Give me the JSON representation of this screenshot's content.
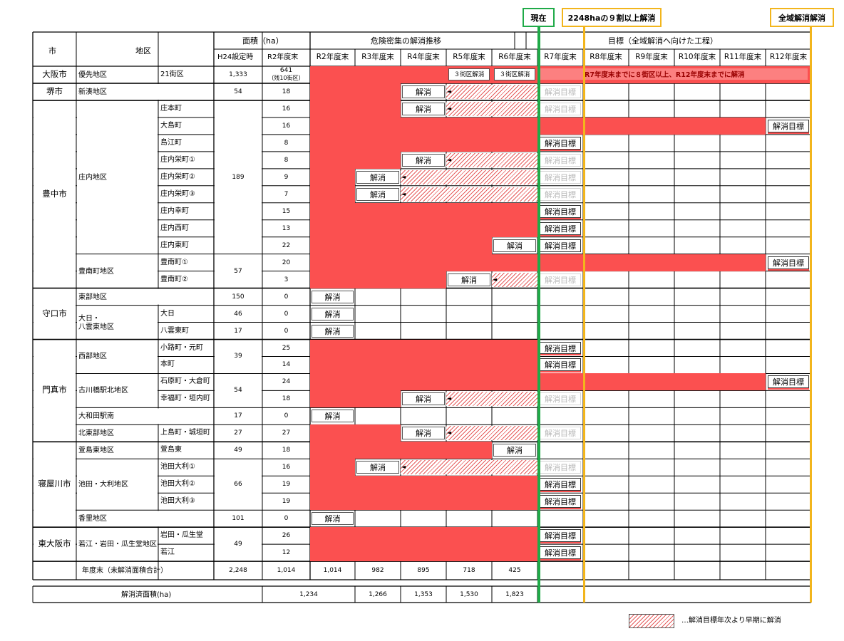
{
  "markers": {
    "current": "現在",
    "ninety": "2248haの９割以上解消",
    "full": "全域解消解消"
  },
  "headers": {
    "city": "市",
    "district": "地区",
    "area": "面積（ha）",
    "h24": "H24設定時",
    "r2": "R2年度末",
    "progress": "危険密集の解消推移",
    "target": "目標（全域解消へ向けた工程）",
    "years": [
      "R2年度末",
      "R3年度末",
      "R4年度末",
      "R5年度末",
      "R6年度末",
      "R7年度末",
      "R8年度末",
      "R9年度末",
      "R10年度末",
      "R11年度末",
      "R12年度末"
    ]
  },
  "labels": {
    "resolved": "解消",
    "target": "解消目標",
    "total_label": "年度末（未解消面積合計）",
    "resolved_area_label": "解消済面積(ha)",
    "legend": "…解消目標年次より早期に解消"
  },
  "cities": [
    {
      "name": "大阪市",
      "rows": [
        0,
        0
      ]
    },
    {
      "name": "堺市",
      "rows": [
        1,
        1
      ]
    },
    {
      "name": "豊中市",
      "rows": [
        2,
        12
      ]
    },
    {
      "name": "守口市",
      "rows": [
        13,
        15
      ]
    },
    {
      "name": "門真市",
      "rows": [
        16,
        21
      ]
    },
    {
      "name": "寝屋川市",
      "rows": [
        22,
        26
      ]
    },
    {
      "name": "東大阪市",
      "rows": [
        27,
        28
      ]
    }
  ],
  "districts": [
    {
      "name": "優先地区",
      "rows": [
        0,
        0
      ]
    },
    {
      "name": "新湊地区",
      "rows": [
        1,
        1
      ],
      "wide": true
    },
    {
      "name": "庄内地区",
      "rows": [
        2,
        10
      ]
    },
    {
      "name": "豊南町地区",
      "rows": [
        11,
        12
      ]
    },
    {
      "name": "東部地区",
      "rows": [
        13,
        13
      ],
      "wide": true
    },
    {
      "name": "大日・\n八雲東地区",
      "rows": [
        14,
        15
      ]
    },
    {
      "name": "西部地区",
      "rows": [
        16,
        17
      ]
    },
    {
      "name": "古川橋駅北地区",
      "rows": [
        18,
        19
      ]
    },
    {
      "name": "大和田駅南",
      "rows": [
        20,
        20
      ],
      "wide": true
    },
    {
      "name": "北東部地区",
      "rows": [
        21,
        21
      ]
    },
    {
      "name": "萱島東地区",
      "rows": [
        22,
        22
      ]
    },
    {
      "name": "池田・大利地区",
      "rows": [
        23,
        25
      ]
    },
    {
      "name": "香里地区",
      "rows": [
        26,
        26
      ],
      "wide": true
    },
    {
      "name": "若江・岩田・瓜生堂地区",
      "rows": [
        27,
        28
      ]
    }
  ],
  "h24": [
    {
      "v": "1,333",
      "rows": [
        0,
        0
      ]
    },
    {
      "v": "54",
      "rows": [
        1,
        1
      ]
    },
    {
      "v": "189",
      "rows": [
        2,
        10
      ]
    },
    {
      "v": "57",
      "rows": [
        11,
        12
      ]
    },
    {
      "v": "150",
      "rows": [
        13,
        13
      ]
    },
    {
      "v": "46",
      "rows": [
        14,
        14
      ]
    },
    {
      "v": "17",
      "rows": [
        15,
        15
      ]
    },
    {
      "v": "39",
      "rows": [
        16,
        17
      ]
    },
    {
      "v": "54",
      "rows": [
        18,
        19
      ]
    },
    {
      "v": "17",
      "rows": [
        20,
        20
      ]
    },
    {
      "v": "27",
      "rows": [
        21,
        21
      ]
    },
    {
      "v": "49",
      "rows": [
        22,
        22
      ]
    },
    {
      "v": "66",
      "rows": [
        23,
        25
      ]
    },
    {
      "v": "101",
      "rows": [
        26,
        26
      ]
    },
    {
      "v": "49",
      "rows": [
        27,
        28
      ]
    }
  ],
  "rows": [
    {
      "sub": "21街区",
      "r2": "641",
      "r2_note": "（残10街区）",
      "red": [
        0,
        4
      ],
      "special": "osaka"
    },
    {
      "sub": "",
      "r2": "18",
      "red": [
        0,
        1
      ],
      "res": 2,
      "hatch": [
        3,
        4
      ],
      "faded": 5
    },
    {
      "sub": "庄本町",
      "r2": "16",
      "red": [
        0,
        1
      ],
      "res": 2,
      "hatch": [
        3,
        4
      ],
      "faded": 5
    },
    {
      "sub": "大島町",
      "r2": "16",
      "red": [
        0,
        9
      ],
      "tgt": 10
    },
    {
      "sub": "島江町",
      "r2": "8",
      "red": [
        0,
        4
      ],
      "tgt": 5
    },
    {
      "sub": "庄内栄町①",
      "r2": "8",
      "red": [
        0,
        1
      ],
      "res": 2,
      "hatch": [
        3,
        4
      ],
      "faded": 5
    },
    {
      "sub": "庄内栄町②",
      "r2": "9",
      "red": [
        0,
        0
      ],
      "res": 1,
      "hatch": [
        2,
        4
      ],
      "faded": 5
    },
    {
      "sub": "庄内栄町③",
      "r2": "7",
      "red": [
        0,
        0
      ],
      "res": 1,
      "hatch": [
        2,
        4
      ],
      "faded": 5
    },
    {
      "sub": "庄内幸町",
      "r2": "15",
      "red": [
        0,
        4
      ],
      "tgt": 5
    },
    {
      "sub": "庄内西町",
      "r2": "13",
      "red": [
        0,
        4
      ],
      "tgt": 5
    },
    {
      "sub": "庄内東町",
      "r2": "22",
      "red": [
        0,
        3
      ],
      "res": 4,
      "faded": -1,
      "tgtbold": 5
    },
    {
      "sub": "豊南町①",
      "r2": "20",
      "red": [
        0,
        9
      ],
      "tgt": 10
    },
    {
      "sub": "豊南町②",
      "r2": "3",
      "red": [
        0,
        2
      ],
      "res": 3,
      "hatch": [
        4,
        4
      ],
      "faded": 5
    },
    {
      "sub": "",
      "r2": "0",
      "res": 0
    },
    {
      "sub": "大日",
      "r2": "0",
      "res": 0
    },
    {
      "sub": "八雲東町",
      "r2": "0",
      "res": 0
    },
    {
      "sub": "小路町・元町",
      "r2": "25",
      "red": [
        0,
        4
      ],
      "tgt": 5
    },
    {
      "sub": "本町",
      "r2": "14",
      "red": [
        0,
        4
      ],
      "tgt": 5
    },
    {
      "sub": "石原町・大倉町",
      "r2": "24",
      "red": [
        0,
        9
      ],
      "tgt": 10
    },
    {
      "sub": "幸福町・垣内町",
      "r2": "18",
      "red": [
        0,
        1
      ],
      "res": 2,
      "hatch": [
        3,
        4
      ],
      "faded": 5
    },
    {
      "sub": "",
      "r2": "0",
      "res": 0
    },
    {
      "sub": "上島町・城垣町",
      "r2": "27",
      "red": [
        0,
        1
      ],
      "res": 2,
      "hatch": [
        3,
        4
      ],
      "faded": 5
    },
    {
      "sub": "萱島東",
      "r2": "18",
      "red": [
        0,
        3
      ],
      "res": 4
    },
    {
      "sub": "池田大利①",
      "r2": "16",
      "red": [
        0,
        0
      ],
      "res": 1,
      "hatch": [
        2,
        4
      ],
      "faded": 5
    },
    {
      "sub": "池田大利②",
      "r2": "19",
      "red": [
        0,
        4
      ],
      "tgt": 5
    },
    {
      "sub": "池田大利③",
      "r2": "19",
      "red": [
        0,
        4
      ],
      "tgt": 5
    },
    {
      "sub": "",
      "r2": "0",
      "res": 0
    },
    {
      "sub": "岩田・瓜生堂",
      "r2": "26",
      "red": [
        0,
        4
      ],
      "tgt": 5
    },
    {
      "sub": "若江",
      "r2": "12",
      "red": [
        0,
        4
      ],
      "tgt": 5
    }
  ],
  "osaka": {
    "r5": "３街区解消",
    "r6": "３街区解消",
    "note": "R7年度末までに８街区以上、R12年度末までに解消"
  },
  "totals": {
    "h24": "2,248",
    "r2": "1,014",
    "years": [
      "1,014",
      "982",
      "895",
      "718",
      "425"
    ]
  },
  "resolved_area": [
    "1,234",
    "1,266",
    "1,353",
    "1,530",
    "1,823"
  ]
}
